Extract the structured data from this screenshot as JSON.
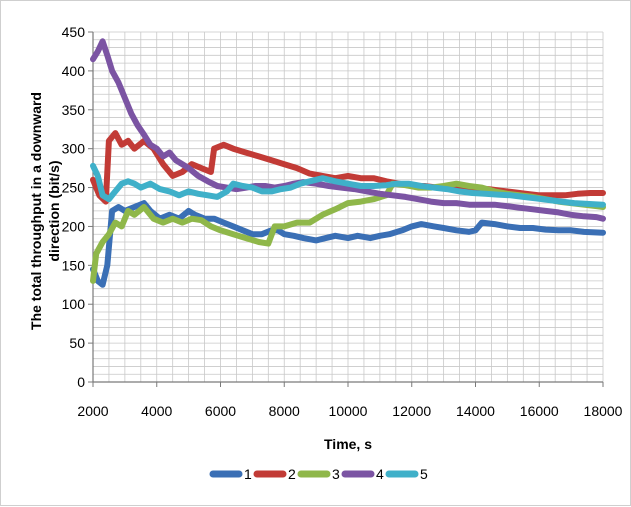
{
  "chart_data": {
    "type": "line",
    "title": "",
    "xlabel": "Time, s",
    "ylabel_line1": "The total throughput in a downward",
    "ylabel_line2": "direction (bit/s)",
    "xlim": [
      2000,
      18000
    ],
    "ylim": [
      0,
      450
    ],
    "x_ticks": [
      "2000",
      "4000",
      "6000",
      "8000",
      "10000",
      "12000",
      "14000",
      "16000",
      "18000"
    ],
    "x_tick_values": [
      2000,
      4000,
      6000,
      8000,
      10000,
      12000,
      14000,
      16000,
      18000
    ],
    "y_ticks": [
      "0",
      "50",
      "100",
      "150",
      "200",
      "250",
      "300",
      "350",
      "400",
      "450"
    ],
    "y_tick_values": [
      0,
      50,
      100,
      150,
      200,
      250,
      300,
      350,
      400,
      450
    ],
    "grid": true,
    "legend_position": "bottom",
    "series": [
      {
        "name": "1",
        "color": "#3a6fb5",
        "points": [
          [
            2000,
            145
          ],
          [
            2150,
            130
          ],
          [
            2300,
            125
          ],
          [
            2450,
            150
          ],
          [
            2600,
            220
          ],
          [
            2800,
            225
          ],
          [
            3000,
            220
          ],
          [
            3300,
            225
          ],
          [
            3600,
            230
          ],
          [
            3800,
            220
          ],
          [
            4100,
            210
          ],
          [
            4400,
            215
          ],
          [
            4700,
            210
          ],
          [
            5000,
            220
          ],
          [
            5200,
            215
          ],
          [
            5500,
            210
          ],
          [
            5800,
            210
          ],
          [
            6100,
            205
          ],
          [
            6400,
            200
          ],
          [
            6700,
            195
          ],
          [
            7000,
            190
          ],
          [
            7300,
            190
          ],
          [
            7600,
            195
          ],
          [
            7800,
            195
          ],
          [
            8000,
            190
          ],
          [
            8300,
            188
          ],
          [
            8600,
            185
          ],
          [
            9000,
            182
          ],
          [
            9300,
            185
          ],
          [
            9600,
            188
          ],
          [
            10000,
            185
          ],
          [
            10300,
            188
          ],
          [
            10700,
            185
          ],
          [
            11000,
            188
          ],
          [
            11300,
            190
          ],
          [
            11700,
            195
          ],
          [
            12000,
            200
          ],
          [
            12300,
            203
          ],
          [
            12700,
            200
          ],
          [
            13000,
            198
          ],
          [
            13400,
            195
          ],
          [
            13800,
            193
          ],
          [
            14000,
            195
          ],
          [
            14200,
            205
          ],
          [
            14600,
            203
          ],
          [
            15000,
            200
          ],
          [
            15400,
            198
          ],
          [
            15800,
            198
          ],
          [
            16200,
            196
          ],
          [
            16600,
            195
          ],
          [
            17000,
            195
          ],
          [
            17400,
            193
          ],
          [
            18000,
            192
          ]
        ]
      },
      {
        "name": "2",
        "color": "#c23b36",
        "points": [
          [
            2000,
            260
          ],
          [
            2200,
            240
          ],
          [
            2400,
            232
          ],
          [
            2500,
            310
          ],
          [
            2700,
            320
          ],
          [
            2900,
            305
          ],
          [
            3100,
            310
          ],
          [
            3300,
            300
          ],
          [
            3600,
            310
          ],
          [
            3900,
            300
          ],
          [
            4200,
            280
          ],
          [
            4500,
            265
          ],
          [
            4800,
            270
          ],
          [
            5100,
            280
          ],
          [
            5400,
            275
          ],
          [
            5700,
            270
          ],
          [
            5800,
            300
          ],
          [
            6100,
            305
          ],
          [
            6400,
            300
          ],
          [
            6800,
            295
          ],
          [
            7200,
            290
          ],
          [
            7600,
            285
          ],
          [
            8000,
            280
          ],
          [
            8400,
            275
          ],
          [
            8800,
            268
          ],
          [
            9200,
            265
          ],
          [
            9600,
            262
          ],
          [
            10000,
            265
          ],
          [
            10400,
            262
          ],
          [
            10800,
            262
          ],
          [
            11200,
            258
          ],
          [
            11600,
            255
          ],
          [
            12000,
            252
          ],
          [
            12400,
            252
          ],
          [
            12800,
            250
          ],
          [
            13200,
            250
          ],
          [
            13600,
            248
          ],
          [
            14000,
            248
          ],
          [
            14400,
            248
          ],
          [
            14800,
            246
          ],
          [
            15200,
            244
          ],
          [
            15600,
            242
          ],
          [
            16000,
            240
          ],
          [
            16400,
            240
          ],
          [
            16800,
            240
          ],
          [
            17200,
            242
          ],
          [
            17600,
            243
          ],
          [
            18000,
            243
          ]
        ]
      },
      {
        "name": "3",
        "color": "#8fb74a",
        "points": [
          [
            2000,
            130
          ],
          [
            2100,
            165
          ],
          [
            2300,
            180
          ],
          [
            2500,
            190
          ],
          [
            2700,
            205
          ],
          [
            2900,
            200
          ],
          [
            3100,
            220
          ],
          [
            3300,
            215
          ],
          [
            3600,
            225
          ],
          [
            3900,
            210
          ],
          [
            4200,
            205
          ],
          [
            4500,
            210
          ],
          [
            4800,
            205
          ],
          [
            5100,
            210
          ],
          [
            5400,
            208
          ],
          [
            5700,
            200
          ],
          [
            6000,
            195
          ],
          [
            6400,
            190
          ],
          [
            6800,
            185
          ],
          [
            7200,
            180
          ],
          [
            7500,
            178
          ],
          [
            7700,
            200
          ],
          [
            8000,
            200
          ],
          [
            8400,
            205
          ],
          [
            8800,
            205
          ],
          [
            9200,
            215
          ],
          [
            9600,
            222
          ],
          [
            10000,
            230
          ],
          [
            10400,
            232
          ],
          [
            10800,
            235
          ],
          [
            11200,
            240
          ],
          [
            11400,
            255
          ],
          [
            11800,
            253
          ],
          [
            12200,
            250
          ],
          [
            12600,
            250
          ],
          [
            13000,
            252
          ],
          [
            13400,
            255
          ],
          [
            13800,
            252
          ],
          [
            14200,
            250
          ],
          [
            14600,
            245
          ],
          [
            15000,
            242
          ],
          [
            15400,
            240
          ],
          [
            15800,
            238
          ],
          [
            16200,
            235
          ],
          [
            16600,
            232
          ],
          [
            17000,
            230
          ],
          [
            17400,
            228
          ],
          [
            17800,
            226
          ],
          [
            18000,
            225
          ]
        ]
      },
      {
        "name": "4",
        "color": "#7b54a3",
        "points": [
          [
            2000,
            415
          ],
          [
            2150,
            425
          ],
          [
            2300,
            438
          ],
          [
            2450,
            420
          ],
          [
            2600,
            400
          ],
          [
            2800,
            385
          ],
          [
            3000,
            365
          ],
          [
            3200,
            345
          ],
          [
            3400,
            330
          ],
          [
            3600,
            318
          ],
          [
            3800,
            305
          ],
          [
            4000,
            300
          ],
          [
            4200,
            290
          ],
          [
            4400,
            295
          ],
          [
            4600,
            285
          ],
          [
            4800,
            280
          ],
          [
            5000,
            275
          ],
          [
            5300,
            265
          ],
          [
            5600,
            258
          ],
          [
            5900,
            252
          ],
          [
            6200,
            250
          ],
          [
            6500,
            248
          ],
          [
            6800,
            250
          ],
          [
            7100,
            252
          ],
          [
            7400,
            252
          ],
          [
            7700,
            250
          ],
          [
            8000,
            252
          ],
          [
            8300,
            255
          ],
          [
            8600,
            257
          ],
          [
            9000,
            255
          ],
          [
            9400,
            252
          ],
          [
            9800,
            250
          ],
          [
            10200,
            248
          ],
          [
            10600,
            245
          ],
          [
            11000,
            242
          ],
          [
            11400,
            240
          ],
          [
            11800,
            238
          ],
          [
            12200,
            235
          ],
          [
            12600,
            232
          ],
          [
            13000,
            230
          ],
          [
            13400,
            230
          ],
          [
            13800,
            228
          ],
          [
            14200,
            228
          ],
          [
            14600,
            228
          ],
          [
            15000,
            226
          ],
          [
            15400,
            224
          ],
          [
            15800,
            222
          ],
          [
            16200,
            220
          ],
          [
            16600,
            218
          ],
          [
            17000,
            215
          ],
          [
            17400,
            213
          ],
          [
            17800,
            212
          ],
          [
            18000,
            210
          ]
        ]
      },
      {
        "name": "5",
        "color": "#3fb0c9",
        "points": [
          [
            2000,
            278
          ],
          [
            2150,
            265
          ],
          [
            2300,
            240
          ],
          [
            2500,
            235
          ],
          [
            2700,
            245
          ],
          [
            2900,
            255
          ],
          [
            3100,
            258
          ],
          [
            3300,
            255
          ],
          [
            3500,
            250
          ],
          [
            3800,
            255
          ],
          [
            4100,
            248
          ],
          [
            4400,
            245
          ],
          [
            4700,
            240
          ],
          [
            5000,
            245
          ],
          [
            5300,
            242
          ],
          [
            5600,
            240
          ],
          [
            5900,
            238
          ],
          [
            6200,
            245
          ],
          [
            6400,
            255
          ],
          [
            6700,
            252
          ],
          [
            7000,
            250
          ],
          [
            7300,
            245
          ],
          [
            7600,
            245
          ],
          [
            7900,
            248
          ],
          [
            8200,
            250
          ],
          [
            8500,
            255
          ],
          [
            8800,
            258
          ],
          [
            9200,
            262
          ],
          [
            9600,
            258
          ],
          [
            10000,
            255
          ],
          [
            10400,
            252
          ],
          [
            10800,
            252
          ],
          [
            11200,
            253
          ],
          [
            11500,
            255
          ],
          [
            11900,
            255
          ],
          [
            12300,
            252
          ],
          [
            12700,
            250
          ],
          [
            13100,
            248
          ],
          [
            13500,
            245
          ],
          [
            13900,
            243
          ],
          [
            14300,
            242
          ],
          [
            14700,
            241
          ],
          [
            15100,
            240
          ],
          [
            15500,
            238
          ],
          [
            15900,
            236
          ],
          [
            16300,
            234
          ],
          [
            16700,
            232
          ],
          [
            17100,
            230
          ],
          [
            17500,
            229
          ],
          [
            18000,
            228
          ]
        ]
      }
    ]
  }
}
